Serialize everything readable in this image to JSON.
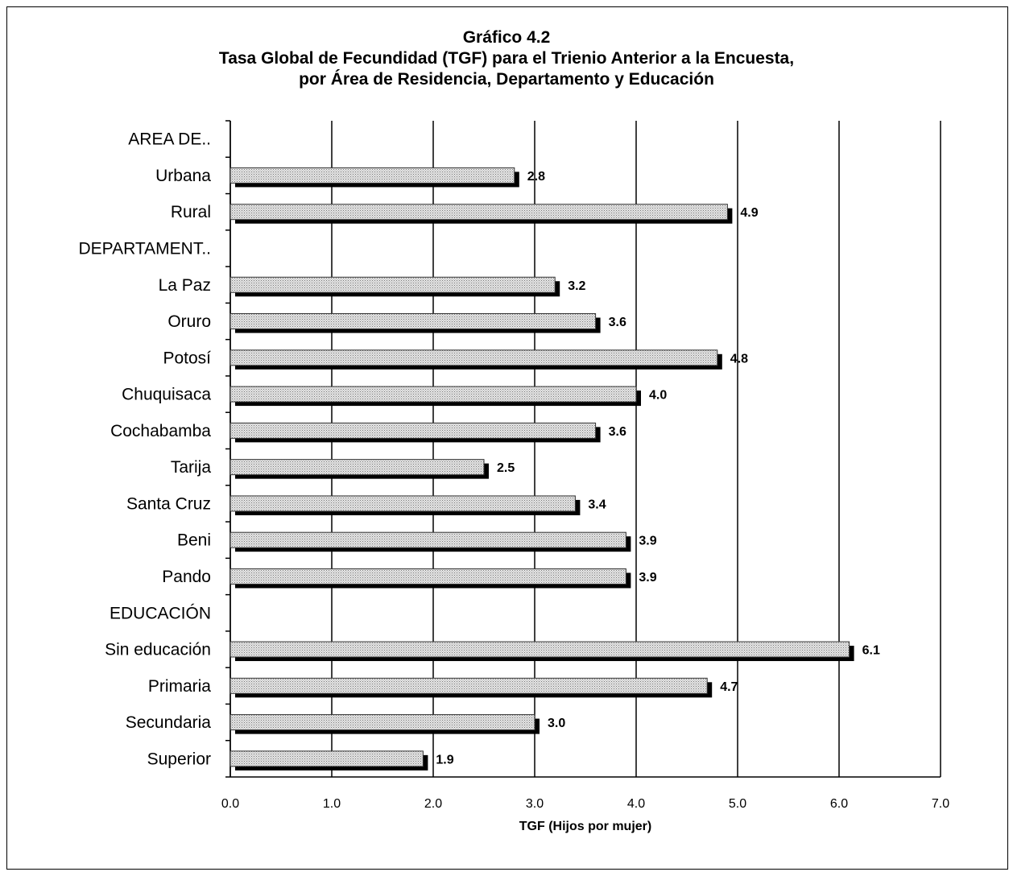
{
  "chart_data": {
    "type": "bar",
    "orientation": "horizontal",
    "title": "Gráfico 4.2",
    "subtitle_lines": [
      "Tasa Global de Fecundidad (TGF) para el Trienio Anterior  a la Encuesta,",
      "por Área de Residencia,  Departamento  y Educación"
    ],
    "xlabel": "TGF (Hijos por mujer)",
    "ylabel": "",
    "xlim": [
      0,
      7
    ],
    "xticks": [
      "0.0",
      "1.0",
      "2.0",
      "3.0",
      "4.0",
      "5.0",
      "6.0",
      "7.0"
    ],
    "grid": true,
    "legend": "none",
    "categories": [
      "AREA DE..",
      "Urbana",
      "Rural",
      "DEPARTAMENT..",
      "La Paz",
      "Oruro",
      "Potosí",
      "Chuquisaca",
      "Cochabamba",
      "Tarija",
      "Santa Cruz",
      "Beni",
      "Pando",
      "EDUCACIÓN",
      "Sin educación",
      "Primaria",
      "Secundaria",
      "Superior"
    ],
    "values": [
      null,
      2.8,
      4.9,
      null,
      3.2,
      3.6,
      4.8,
      4.0,
      3.6,
      2.5,
      3.4,
      3.9,
      3.9,
      null,
      6.1,
      4.7,
      3.0,
      1.9
    ],
    "value_labels": [
      "",
      "2.8",
      "4.9",
      "",
      "3.2",
      "3.6",
      "4.8",
      "4.0",
      "3.6",
      "2.5",
      "3.4",
      "3.9",
      "3.9",
      "",
      "6.1",
      "4.7",
      "3.0",
      "1.9"
    ],
    "colors": {
      "bar_fill": "#d9d9d9",
      "bar_shadow": "#000000",
      "grid": "#000000"
    }
  }
}
